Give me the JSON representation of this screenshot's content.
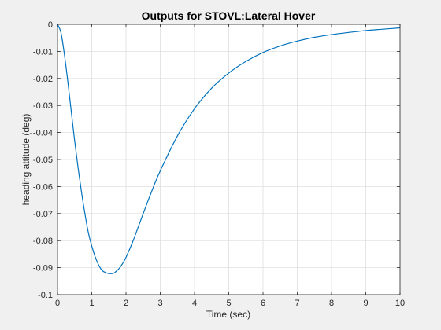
{
  "chart_data": {
    "type": "line",
    "title": "Outputs for STOVL:Lateral Hover",
    "xlabel": "Time (sec)",
    "ylabel": "heading attitude (deg)",
    "xlim": [
      0,
      10
    ],
    "ylim": [
      -0.1,
      0
    ],
    "xticks": [
      0,
      1,
      2,
      3,
      4,
      5,
      6,
      7,
      8,
      9,
      10
    ],
    "xtick_labels": [
      "0",
      "1",
      "2",
      "3",
      "4",
      "5",
      "6",
      "7",
      "8",
      "9",
      "10"
    ],
    "yticks": [
      0,
      -0.01,
      -0.02,
      -0.03,
      -0.04,
      -0.05,
      -0.06,
      -0.07,
      -0.08,
      -0.09,
      -0.1
    ],
    "ytick_labels": [
      "0",
      "-0.01",
      "-0.02",
      "-0.03",
      "-0.04",
      "-0.05",
      "-0.06",
      "-0.07",
      "-0.08",
      "-0.09",
      "-0.1"
    ],
    "grid": true,
    "series": [
      {
        "color": "#0072BD",
        "x": [
          0,
          0.1,
          0.2,
          0.3,
          0.4,
          0.5,
          0.6,
          0.7,
          0.8,
          0.9,
          1.0,
          1.1,
          1.2,
          1.3,
          1.4,
          1.5,
          1.6,
          1.65,
          1.7,
          1.8,
          1.9,
          2.0,
          2.2,
          2.4,
          2.6,
          2.8,
          3.0,
          3.5,
          4.0,
          4.5,
          5.0,
          5.5,
          6.0,
          6.5,
          7.0,
          7.5,
          8.0,
          8.5,
          9.0,
          9.5,
          10.0
        ],
        "y": [
          0,
          -0.003,
          -0.011,
          -0.021,
          -0.032,
          -0.043,
          -0.053,
          -0.062,
          -0.07,
          -0.077,
          -0.082,
          -0.086,
          -0.089,
          -0.091,
          -0.0918,
          -0.0922,
          -0.0922,
          -0.092,
          -0.0915,
          -0.0903,
          -0.0885,
          -0.0862,
          -0.0803,
          -0.0735,
          -0.0667,
          -0.0602,
          -0.0542,
          -0.0413,
          -0.0312,
          -0.0236,
          -0.018,
          -0.0137,
          -0.0104,
          -0.008,
          -0.0062,
          -0.0048,
          -0.0038,
          -0.003,
          -0.0023,
          -0.0018,
          -0.0013
        ]
      }
    ]
  }
}
